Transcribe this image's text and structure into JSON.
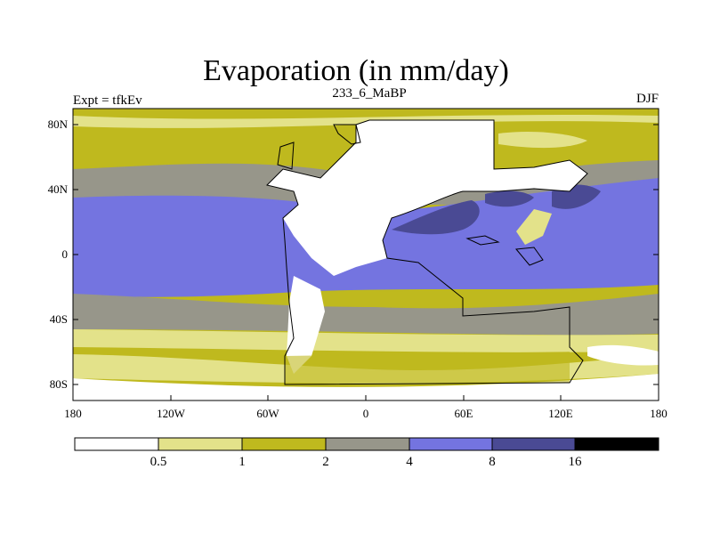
{
  "title": "Evaporation (in mm/day)",
  "left_label": "Expt = tfkEv",
  "center_label": "233_6_MaBP",
  "right_label": "DJF",
  "y_ticks": [
    "80N",
    "40N",
    "0",
    "40S",
    "80S"
  ],
  "x_ticks": [
    "180",
    "120W",
    "60W",
    "0",
    "60E",
    "120E",
    "180"
  ],
  "colorbar": {
    "labels": [
      "0.5",
      "1",
      "2",
      "4",
      "8",
      "16"
    ],
    "colors": [
      "#ffffff",
      "#e3e28a",
      "#bfb91e",
      "#97968a",
      "#7474e0",
      "#4a4a94",
      "#000000"
    ]
  }
}
